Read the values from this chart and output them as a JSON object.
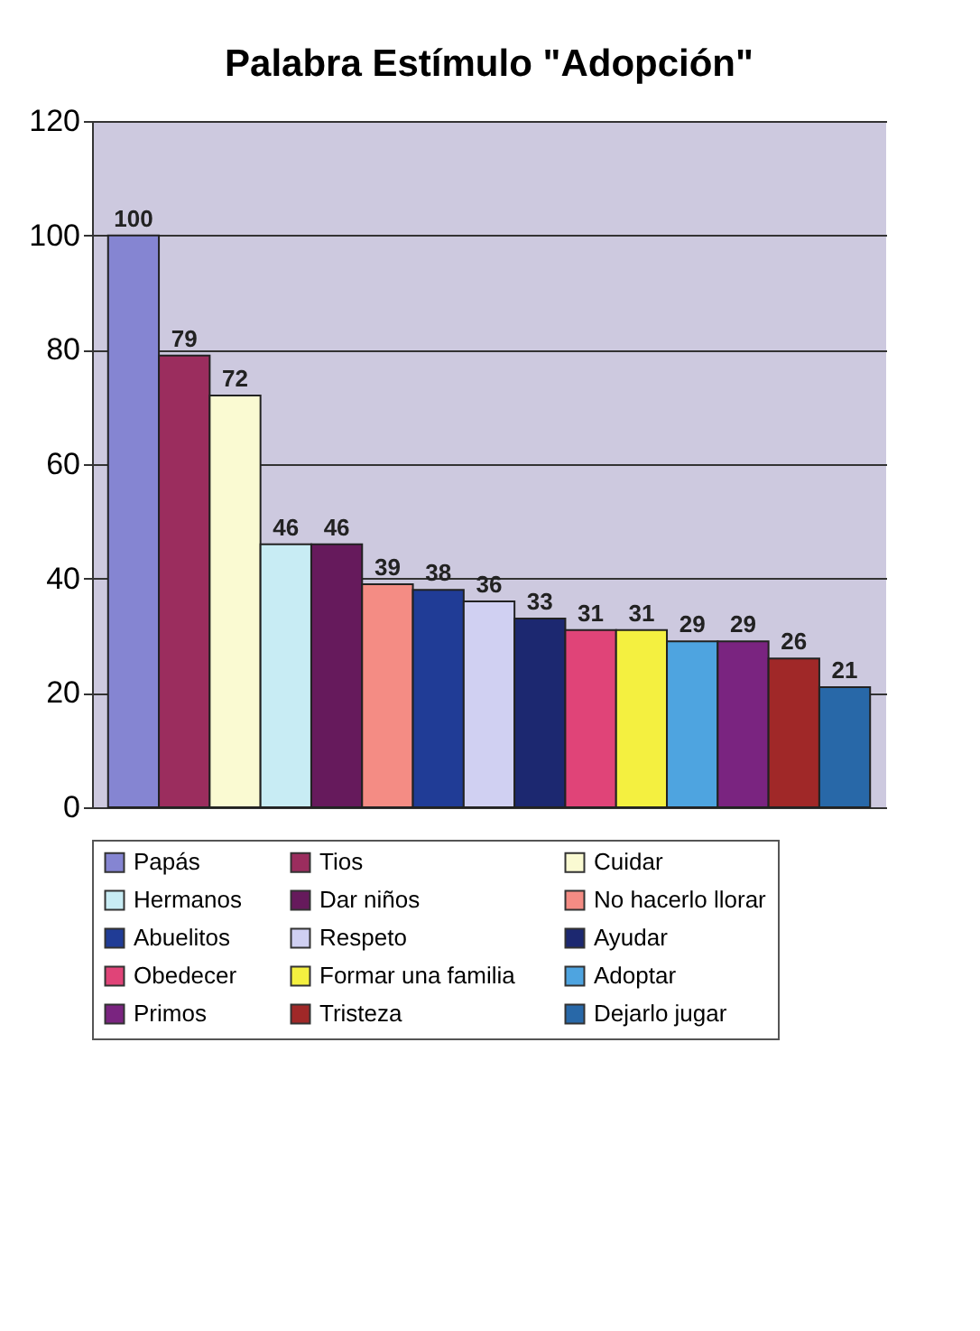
{
  "chart_data": {
    "type": "bar",
    "title": "Palabra Estímulo \"Adopción\"",
    "categories": [
      null
    ],
    "series": [
      {
        "name": "Papás",
        "color": "#8585d2",
        "values": [
          100
        ]
      },
      {
        "name": "Tios",
        "color": "#9b2d5e",
        "values": [
          79
        ]
      },
      {
        "name": "Cuidar",
        "color": "#fafad2",
        "values": [
          72
        ]
      },
      {
        "name": "Hermanos",
        "color": "#c8ecf4",
        "values": [
          46
        ]
      },
      {
        "name": "Dar niños",
        "color": "#661a5c",
        "values": [
          46
        ]
      },
      {
        "name": "No hacerlo llorar",
        "color": "#f48c84",
        "values": [
          39
        ]
      },
      {
        "name": "Abuelitos",
        "color": "#203c96",
        "values": [
          38
        ]
      },
      {
        "name": "Respeto",
        "color": "#d0d0f2",
        "values": [
          36
        ]
      },
      {
        "name": "Ayudar",
        "color": "#1c2870",
        "values": [
          33
        ]
      },
      {
        "name": "Obedecer",
        "color": "#e04478",
        "values": [
          31
        ]
      },
      {
        "name": "Formar una familia",
        "color": "#f4f040",
        "values": [
          31
        ]
      },
      {
        "name": "Adoptar",
        "color": "#4ea4e0",
        "values": [
          29
        ]
      },
      {
        "name": "Primos",
        "color": "#7a2480",
        "values": [
          29
        ]
      },
      {
        "name": "Tristeza",
        "color": "#a02828",
        "values": [
          26
        ]
      },
      {
        "name": "Dejarlo jugar",
        "color": "#2868a8",
        "values": [
          21
        ]
      }
    ],
    "ylim": [
      0,
      120
    ],
    "yticks": [
      0,
      20,
      40,
      60,
      80,
      100,
      120
    ],
    "grid": "y",
    "legend": "bottom",
    "data_labels": true,
    "tick_labels": "y"
  }
}
